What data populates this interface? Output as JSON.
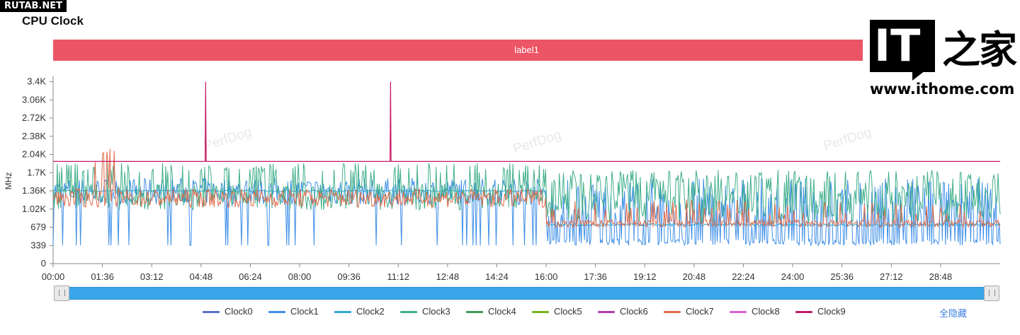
{
  "site_badge": "RUTAB.NET",
  "logo": {
    "mark": "IT",
    "chinese": "之家",
    "url": "www.ithome.com"
  },
  "watermark": "PerfDog",
  "hide_all_label": "全隐藏",
  "chart_data": {
    "type": "line",
    "title": "CPU Clock",
    "band_label": "label1",
    "ylabel": "MHz",
    "ylim": [
      0,
      3500
    ],
    "yticks": [
      0,
      339,
      679,
      1020,
      1360,
      1700,
      2040,
      2380,
      2720,
      3060,
      3400
    ],
    "ytick_labels": [
      "0",
      "339",
      "679",
      "1.02K",
      "1.36K",
      "1.7K",
      "2.04K",
      "2.38K",
      "2.72K",
      "3.06K",
      "3.4K"
    ],
    "x_range_seconds": [
      0,
      1844
    ],
    "xticks_seconds": [
      0,
      96,
      192,
      288,
      384,
      480,
      576,
      672,
      768,
      864,
      960,
      1056,
      1152,
      1248,
      1344,
      1440,
      1536,
      1632,
      1728
    ],
    "xtick_labels": [
      "00:00",
      "01:36",
      "03:12",
      "04:48",
      "06:24",
      "08:00",
      "09:36",
      "11:12",
      "12:48",
      "14:24",
      "16:00",
      "17:36",
      "19:12",
      "20:48",
      "22:24",
      "24:00",
      "25:36",
      "27:12",
      "28:48"
    ],
    "grid": false,
    "legend_position": "bottom",
    "series": [
      {
        "name": "Clock0",
        "color": "#5b6fc8"
      },
      {
        "name": "Clock1",
        "color": "#3d8ee8",
        "low_state": 339,
        "high_state": 1360
      },
      {
        "name": "Clock2",
        "color": "#34a6d2",
        "low_state": 1360
      },
      {
        "name": "Clock3",
        "color": "#3fae8a",
        "low_state": 1020,
        "high_state": 1700
      },
      {
        "name": "Clock4",
        "color": "#3e9a57"
      },
      {
        "name": "Clock5",
        "color": "#7bb31e"
      },
      {
        "name": "Clock6",
        "color": "#b43cb0"
      },
      {
        "name": "Clock7",
        "color": "#e06a4a",
        "peak": 2200,
        "low_state": 679
      },
      {
        "name": "Clock8",
        "color": "#d960d4"
      },
      {
        "name": "Clock9",
        "color": "#c51a6a",
        "baseline": 1910,
        "spikes": [
          {
            "x_seconds": 297,
            "value": 3400
          },
          {
            "x_seconds": 657,
            "value": 3400
          }
        ]
      }
    ]
  }
}
